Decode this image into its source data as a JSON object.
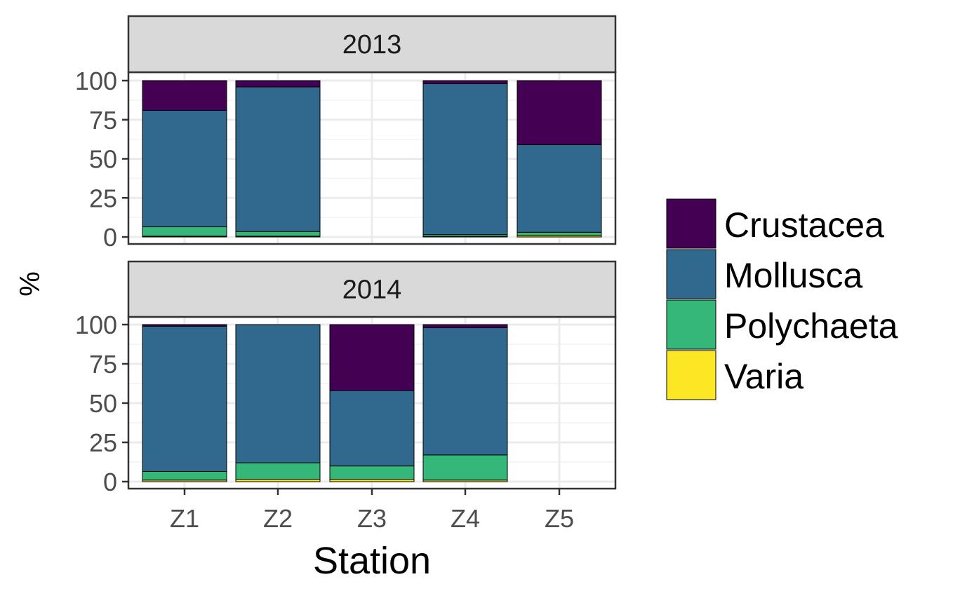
{
  "chart_data": {
    "type": "bar",
    "stacked": true,
    "facet_by": "year",
    "xlabel": "Station",
    "ylabel": "%",
    "ylim": [
      0,
      100
    ],
    "yticks": [
      0,
      25,
      50,
      75,
      100
    ],
    "categories": [
      "Z1",
      "Z2",
      "Z3",
      "Z4",
      "Z5"
    ],
    "grid": true,
    "legend_position": "right",
    "stack_order": [
      "Varia",
      "Polychaeta",
      "Mollusca",
      "Crustacea"
    ],
    "series_colors": {
      "Crustacea": "#440154",
      "Mollusca": "#31688e",
      "Polychaeta": "#35b779",
      "Varia": "#fde725"
    },
    "legend": [
      "Crustacea",
      "Mollusca",
      "Polychaeta",
      "Varia"
    ],
    "panels": [
      {
        "label": "2013",
        "bars": [
          {
            "category": "Z1",
            "Varia": 0.5,
            "Polychaeta": 6,
            "Mollusca": 74.5,
            "Crustacea": 19
          },
          {
            "category": "Z2",
            "Varia": 0.5,
            "Polychaeta": 3,
            "Mollusca": 92.5,
            "Crustacea": 4
          },
          {
            "category": "Z4",
            "Varia": 0.3,
            "Polychaeta": 1.2,
            "Mollusca": 96.5,
            "Crustacea": 2
          },
          {
            "category": "Z5",
            "Varia": 1,
            "Polychaeta": 2,
            "Mollusca": 56,
            "Crustacea": 41
          }
        ]
      },
      {
        "label": "2014",
        "bars": [
          {
            "category": "Z1",
            "Varia": 1,
            "Polychaeta": 5.5,
            "Mollusca": 92.5,
            "Crustacea": 1
          },
          {
            "category": "Z2",
            "Varia": 1.5,
            "Polychaeta": 10.5,
            "Mollusca": 88,
            "Crustacea": 0
          },
          {
            "category": "Z3",
            "Varia": 1.5,
            "Polychaeta": 8.5,
            "Mollusca": 48,
            "Crustacea": 42
          },
          {
            "category": "Z4",
            "Varia": 1,
            "Polychaeta": 16,
            "Mollusca": 81,
            "Crustacea": 2
          }
        ]
      }
    ]
  }
}
